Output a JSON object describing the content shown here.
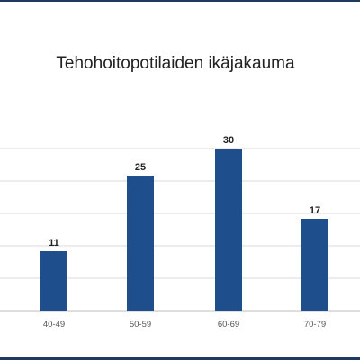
{
  "chart_data": {
    "type": "bar",
    "title": "Tehohoitopotilaiden ikäjakauma",
    "categories": [
      "40-49",
      "50-59",
      "60-69",
      "70-79"
    ],
    "values": [
      11,
      25,
      30,
      17
    ],
    "xlabel": "",
    "ylabel": "",
    "ylim": [
      0,
      35
    ],
    "grid": true,
    "legend": "none",
    "bar_color": "#1f4e8c",
    "grid_color": "#d9d9d9"
  }
}
